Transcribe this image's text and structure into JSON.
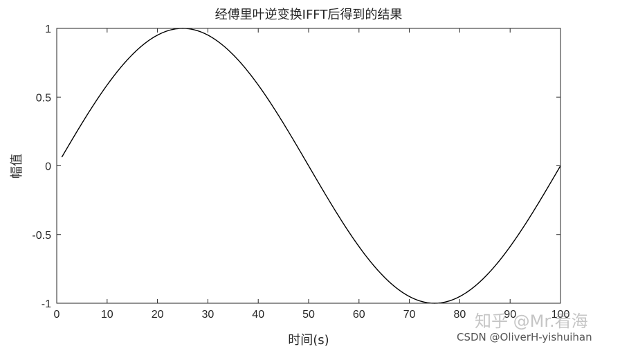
{
  "chart_data": {
    "type": "line",
    "title": "经傅里叶逆变换IFFT后得到的结果",
    "xlabel": "时间(s)",
    "ylabel": "幅值",
    "xlim": [
      0,
      100
    ],
    "ylim": [
      -1,
      1
    ],
    "x_ticks": [
      "0",
      "10",
      "20",
      "30",
      "40",
      "50",
      "60",
      "70",
      "80",
      "90",
      "100"
    ],
    "y_ticks": [
      "1",
      "0.5",
      "0",
      "-0.5",
      "-1"
    ],
    "grid": false,
    "series": [
      {
        "color": "#000000",
        "function": "sin(2*pi*t/100)",
        "x": [
          1,
          5,
          10,
          15,
          20,
          25,
          30,
          35,
          40,
          45,
          50,
          55,
          60,
          65,
          70,
          75,
          80,
          85,
          90,
          95,
          100
        ],
        "y": [
          0.063,
          0.309,
          0.588,
          0.809,
          0.951,
          1.0,
          0.951,
          0.809,
          0.588,
          0.309,
          0.0,
          -0.309,
          -0.588,
          -0.809,
          -0.951,
          -1.0,
          -0.951,
          -0.809,
          -0.588,
          -0.309,
          0.0
        ]
      }
    ]
  },
  "watermarks": {
    "zhihu": "知乎 @Mr.看海",
    "csdn": "CSDN @OliverH-yishuihan"
  }
}
